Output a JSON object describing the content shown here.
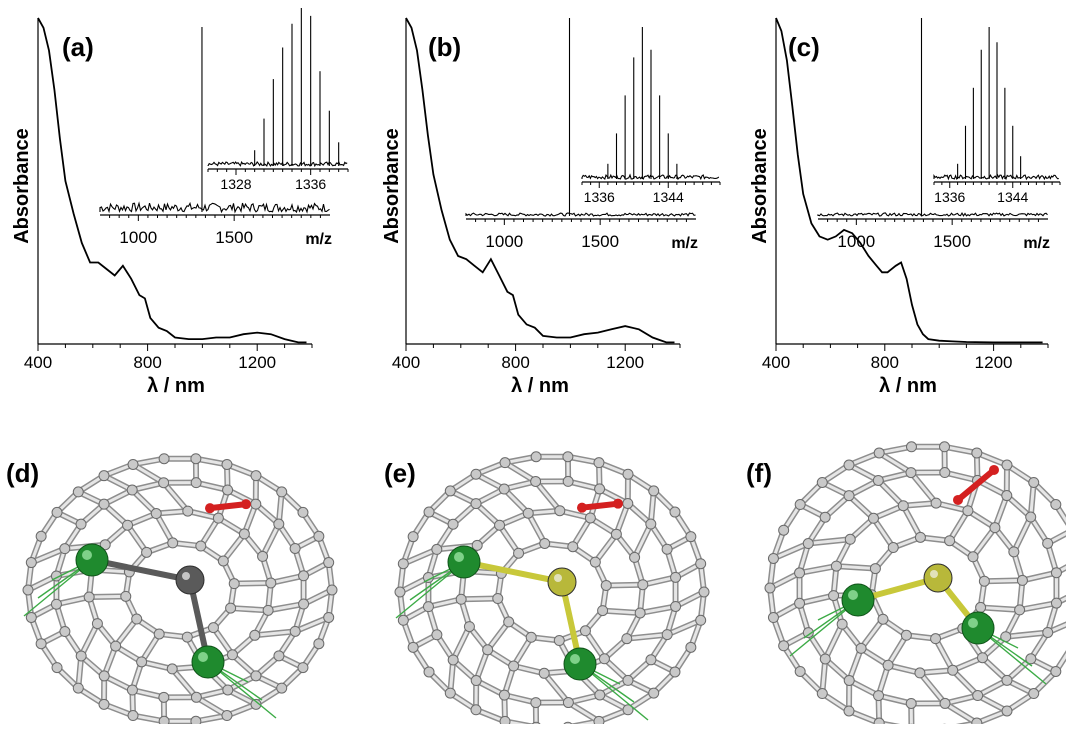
{
  "chart_data": [
    {
      "type": "line",
      "panel_label": "(a)",
      "xlabel": "λ / nm",
      "ylabel": "Absorbance",
      "xlim": [
        400,
        1400
      ],
      "xticks": [
        400,
        800,
        1200
      ],
      "ylim": [
        0,
        1
      ],
      "series": [
        {
          "x": [
            400,
            420,
            440,
            460,
            480,
            500,
            530,
            560,
            590,
            620,
            650,
            680,
            710,
            740,
            770,
            790,
            810,
            840,
            870,
            900,
            950,
            1000,
            1050,
            1100,
            1150,
            1200,
            1250,
            1300,
            1350,
            1380
          ],
          "values": [
            1.0,
            0.97,
            0.9,
            0.78,
            0.63,
            0.5,
            0.4,
            0.31,
            0.25,
            0.25,
            0.23,
            0.21,
            0.24,
            0.2,
            0.15,
            0.14,
            0.08,
            0.05,
            0.04,
            0.02,
            0.015,
            0.015,
            0.02,
            0.02,
            0.03,
            0.035,
            0.03,
            0.015,
            0.005,
            0.005
          ]
        }
      ],
      "inset": {
        "type": "mass-spectrum",
        "xlabel": "m/z",
        "xticks": [
          1000,
          1500
        ],
        "xlim": [
          800,
          2000
        ],
        "peak_x": 1332,
        "zoom": {
          "xticks": [
            1328,
            1336
          ],
          "xlim": [
            1325,
            1340
          ],
          "peaks": [
            {
              "x": 1330,
              "y": 0.1
            },
            {
              "x": 1331,
              "y": 0.3
            },
            {
              "x": 1332,
              "y": 0.55
            },
            {
              "x": 1333,
              "y": 0.75
            },
            {
              "x": 1334,
              "y": 0.9
            },
            {
              "x": 1335,
              "y": 1.0
            },
            {
              "x": 1336,
              "y": 0.95
            },
            {
              "x": 1337,
              "y": 0.6
            },
            {
              "x": 1338,
              "y": 0.35
            },
            {
              "x": 1339,
              "y": 0.15
            }
          ]
        }
      }
    },
    {
      "type": "line",
      "panel_label": "(b)",
      "xlabel": "λ / nm",
      "ylabel": "Absorbance",
      "xlim": [
        400,
        1400
      ],
      "xticks": [
        400,
        800,
        1200
      ],
      "ylim": [
        0,
        1
      ],
      "series": [
        {
          "x": [
            400,
            420,
            440,
            460,
            480,
            500,
            530,
            560,
            590,
            620,
            650,
            680,
            710,
            740,
            770,
            790,
            810,
            840,
            870,
            900,
            950,
            1000,
            1050,
            1100,
            1150,
            1200,
            1250,
            1300,
            1350,
            1380
          ],
          "values": [
            1.0,
            0.97,
            0.9,
            0.78,
            0.64,
            0.52,
            0.41,
            0.32,
            0.27,
            0.26,
            0.24,
            0.22,
            0.26,
            0.21,
            0.16,
            0.15,
            0.09,
            0.06,
            0.05,
            0.025,
            0.02,
            0.02,
            0.03,
            0.035,
            0.045,
            0.055,
            0.045,
            0.02,
            0.005,
            0.005
          ]
        }
      ],
      "inset": {
        "type": "mass-spectrum",
        "xlabel": "m/z",
        "xticks": [
          1000,
          1500
        ],
        "xlim": [
          800,
          2000
        ],
        "peak_x": 1340,
        "zoom": {
          "xticks": [
            1336,
            1344
          ],
          "xlim": [
            1334,
            1350
          ],
          "peaks": [
            {
              "x": 1337,
              "y": 0.1
            },
            {
              "x": 1338,
              "y": 0.3
            },
            {
              "x": 1339,
              "y": 0.55
            },
            {
              "x": 1340,
              "y": 0.8
            },
            {
              "x": 1341,
              "y": 1.0
            },
            {
              "x": 1342,
              "y": 0.85
            },
            {
              "x": 1343,
              "y": 0.55
            },
            {
              "x": 1344,
              "y": 0.3
            },
            {
              "x": 1345,
              "y": 0.1
            }
          ]
        }
      }
    },
    {
      "type": "line",
      "panel_label": "(c)",
      "xlabel": "λ / nm",
      "ylabel": "Absorbance",
      "xlim": [
        400,
        1400
      ],
      "xticks": [
        400,
        800,
        1200
      ],
      "ylim": [
        0,
        1
      ],
      "series": [
        {
          "x": [
            400,
            420,
            440,
            460,
            480,
            500,
            530,
            560,
            590,
            620,
            650,
            680,
            710,
            740,
            770,
            790,
            810,
            840,
            860,
            880,
            900,
            920,
            940,
            960,
            1000,
            1050,
            1100,
            1200,
            1300,
            1380
          ],
          "values": [
            1.0,
            0.96,
            0.87,
            0.73,
            0.58,
            0.46,
            0.37,
            0.33,
            0.32,
            0.33,
            0.35,
            0.34,
            0.31,
            0.27,
            0.24,
            0.22,
            0.22,
            0.24,
            0.25,
            0.2,
            0.12,
            0.06,
            0.03,
            0.015,
            0.01,
            0.008,
            0.006,
            0.005,
            0.005,
            0.005
          ]
        }
      ],
      "inset": {
        "type": "mass-spectrum",
        "xlabel": "m/z",
        "xticks": [
          1000,
          1500
        ],
        "xlim": [
          800,
          2000
        ],
        "peak_x": 1340,
        "zoom": {
          "xticks": [
            1336,
            1344
          ],
          "xlim": [
            1334,
            1350
          ],
          "peaks": [
            {
              "x": 1337,
              "y": 0.1
            },
            {
              "x": 1338,
              "y": 0.35
            },
            {
              "x": 1339,
              "y": 0.6
            },
            {
              "x": 1340,
              "y": 0.85
            },
            {
              "x": 1341,
              "y": 1.0
            },
            {
              "x": 1342,
              "y": 0.9
            },
            {
              "x": 1343,
              "y": 0.6
            },
            {
              "x": 1344,
              "y": 0.35
            },
            {
              "x": 1345,
              "y": 0.15
            }
          ]
        }
      }
    }
  ],
  "structures": [
    {
      "panel_label": "(d)",
      "center_atom": "gray",
      "atom_colors": {
        "metal": "#1f8a2e",
        "center": "#5a5a5a",
        "highlight": "#d42020"
      }
    },
    {
      "panel_label": "(e)",
      "center_atom": "yellow",
      "atom_colors": {
        "metal": "#1f8a2e",
        "center": "#b8b83a",
        "highlight": "#d42020"
      }
    },
    {
      "panel_label": "(f)",
      "center_atom": "yellow",
      "atom_colors": {
        "metal": "#1f8a2e",
        "center": "#b8b83a",
        "highlight": "#d42020"
      }
    }
  ]
}
